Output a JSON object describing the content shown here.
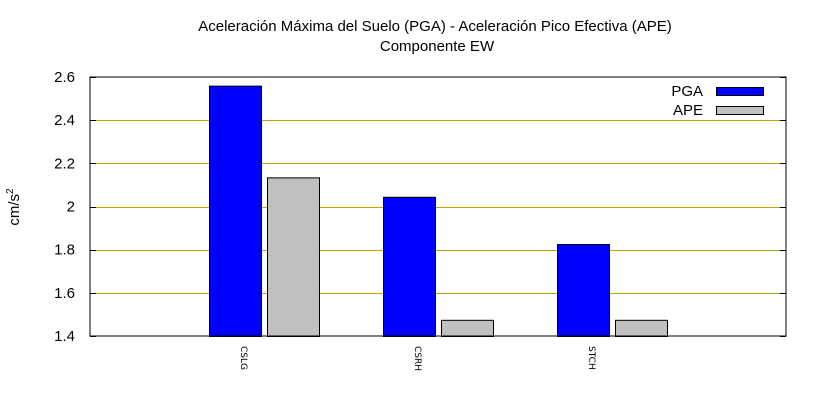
{
  "chart_data": {
    "type": "bar",
    "title": "Aceleración Máxima del Suelo (PGA) -  Aceleración Pico Efectiva (APE)",
    "subtitle": "Componente EW",
    "ylabel_base": "cm/s",
    "ylabel_sup": "2",
    "xlabel": "",
    "categories": [
      "CSLG",
      "CSRH",
      "STCH"
    ],
    "series": [
      {
        "name": "PGA",
        "values": [
          2.56,
          2.045,
          1.826
        ],
        "color": "#0000ff"
      },
      {
        "name": "APE",
        "values": [
          2.135,
          1.475,
          1.475
        ],
        "color": "#c0c0c0"
      }
    ],
    "ylim": [
      1.4,
      2.6
    ],
    "yticks": [
      1.4,
      1.6,
      1.8,
      2.0,
      2.2,
      2.4,
      2.6
    ],
    "ytick_labels": [
      "1.4",
      "1.6",
      "1.8",
      "2",
      "2.2",
      "2.4",
      "2.6"
    ],
    "grid": true,
    "grid_color": "#c8a000",
    "legend_position": "top-right"
  }
}
